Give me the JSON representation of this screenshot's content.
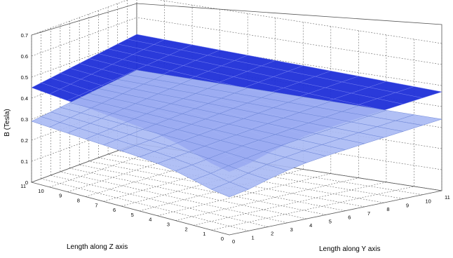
{
  "chart_data": {
    "type": "surface",
    "title": "",
    "zlabel": "B (Tesla)",
    "xlabel": "Length along Z axis",
    "ylabel": "Length along Y axis",
    "xlim": [
      0,
      11
    ],
    "ylim": [
      0,
      11
    ],
    "zlim": [
      0,
      0.7
    ],
    "x_ticks": [
      "0",
      "1",
      "2",
      "3",
      "4",
      "5",
      "6",
      "7",
      "8",
      "9",
      "10",
      "11"
    ],
    "y_ticks": [
      "0",
      "1",
      "2",
      "3",
      "4",
      "5",
      "6",
      "7",
      "8",
      "9",
      "10",
      "11"
    ],
    "z_ticks": [
      "0",
      "0.1",
      "0.2",
      "0.3",
      "0.4",
      "0.5",
      "0.6",
      "0.7"
    ],
    "grid": true,
    "series": [
      {
        "values_at_corners": {
          "x0_y0": 0.36,
          "x0_y11": 0.47,
          "x11_y0": 0.45,
          "x11_y11": 0.52
        },
        "dip_at_x0_y0": 0.06,
        "color": "#1f2fd8",
        "edge_color": "#6f7af0"
      },
      {
        "values_at_corners": {
          "x0_y0": 0.23,
          "x0_y11": 0.34,
          "x11_y0": 0.29,
          "x11_y11": 0.35
        },
        "dip_at_x0_y0": 0.05,
        "color": "#a9b9f4",
        "edge_color": "#6f87d8"
      }
    ]
  }
}
